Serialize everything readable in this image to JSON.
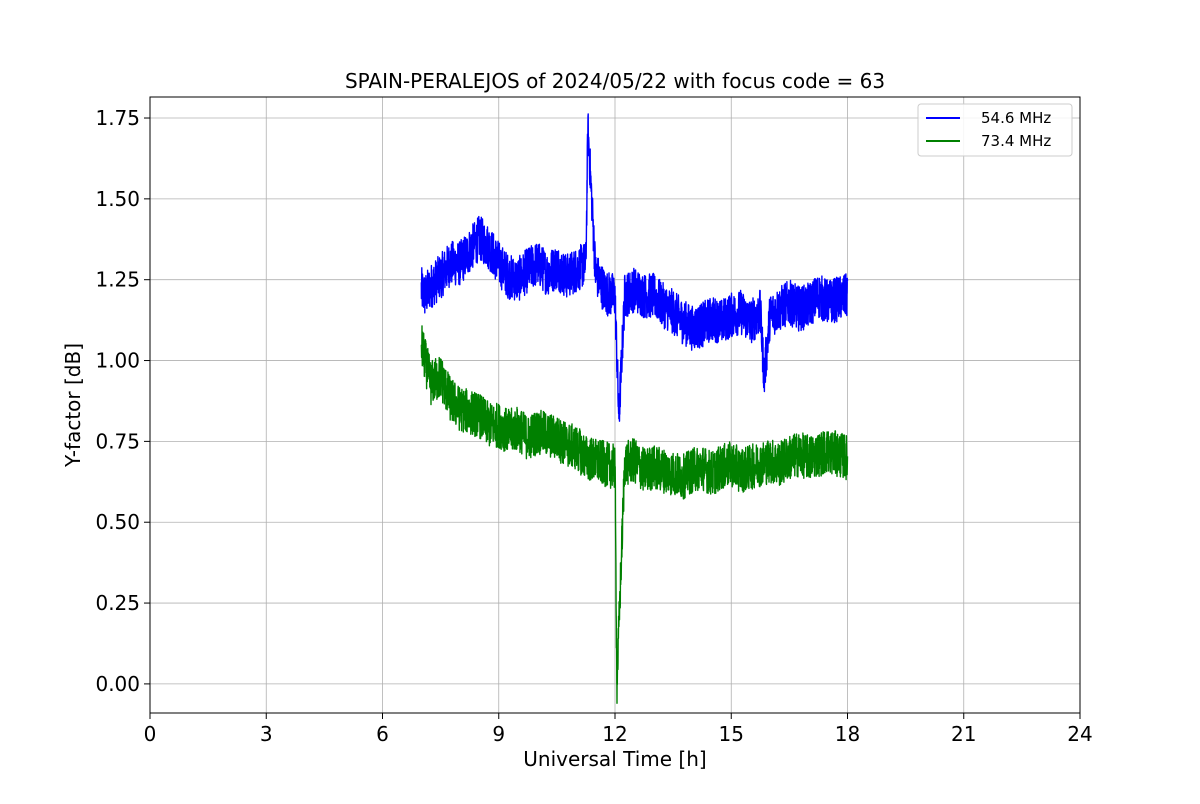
{
  "chart_data": {
    "type": "line",
    "title": "SPAIN-PERALEJOS of 2024/05/22 with focus code = 63",
    "xlabel": "Universal Time [h]",
    "ylabel": "Y-factor [dB]",
    "xlim": [
      0,
      24
    ],
    "ylim": [
      -0.09,
      1.815
    ],
    "xticks": [
      0,
      3,
      6,
      9,
      12,
      15,
      18,
      21,
      24
    ],
    "xtick_labels": [
      "0",
      "3",
      "6",
      "9",
      "12",
      "15",
      "18",
      "21",
      "24"
    ],
    "yticks": [
      0.0,
      0.25,
      0.5,
      0.75,
      1.0,
      1.25,
      1.5,
      1.75
    ],
    "ytick_labels": [
      "0.00",
      "0.25",
      "0.50",
      "0.75",
      "1.00",
      "1.25",
      "1.50",
      "1.75"
    ],
    "grid": true,
    "legend_position": "top-right",
    "series": [
      {
        "name": "54.6 MHz",
        "color": "#0000ff",
        "x": [
          7.0,
          7.1,
          7.25,
          7.5,
          7.75,
          8.0,
          8.25,
          8.5,
          8.75,
          9.0,
          9.25,
          9.5,
          9.75,
          10.0,
          10.25,
          10.5,
          10.75,
          11.0,
          11.25,
          11.3,
          11.5,
          11.75,
          12.0,
          12.1,
          12.25,
          12.5,
          12.75,
          13.0,
          13.25,
          13.5,
          13.75,
          14.0,
          14.25,
          14.5,
          14.75,
          15.0,
          15.25,
          15.5,
          15.75,
          15.85,
          16.0,
          16.25,
          16.5,
          16.75,
          17.0,
          17.25,
          17.5,
          17.75,
          18.0
        ],
        "values": [
          1.22,
          1.2,
          1.23,
          1.26,
          1.3,
          1.3,
          1.34,
          1.38,
          1.35,
          1.3,
          1.26,
          1.25,
          1.28,
          1.3,
          1.27,
          1.29,
          1.26,
          1.28,
          1.3,
          1.72,
          1.27,
          1.21,
          1.2,
          0.82,
          1.2,
          1.22,
          1.2,
          1.2,
          1.17,
          1.15,
          1.12,
          1.1,
          1.11,
          1.13,
          1.12,
          1.14,
          1.15,
          1.12,
          1.15,
          0.95,
          1.14,
          1.16,
          1.18,
          1.16,
          1.17,
          1.2,
          1.18,
          1.19,
          1.2
        ],
        "spread": 0.07
      },
      {
        "name": "73.4 MHz",
        "color": "#008000",
        "x": [
          7.0,
          7.1,
          7.25,
          7.5,
          7.75,
          8.0,
          8.25,
          8.5,
          8.75,
          9.0,
          9.25,
          9.5,
          9.75,
          10.0,
          10.25,
          10.5,
          10.75,
          11.0,
          11.25,
          11.5,
          11.75,
          12.0,
          12.05,
          12.25,
          12.5,
          12.75,
          13.0,
          13.25,
          13.5,
          13.75,
          14.0,
          14.25,
          14.5,
          14.75,
          15.0,
          15.25,
          15.5,
          15.75,
          16.0,
          16.25,
          16.5,
          16.75,
          17.0,
          17.25,
          17.5,
          17.75,
          18.0
        ],
        "values": [
          1.05,
          1.0,
          0.93,
          0.95,
          0.88,
          0.85,
          0.84,
          0.83,
          0.8,
          0.8,
          0.78,
          0.79,
          0.76,
          0.78,
          0.77,
          0.76,
          0.74,
          0.73,
          0.7,
          0.69,
          0.68,
          0.67,
          0.0,
          0.68,
          0.69,
          0.66,
          0.67,
          0.66,
          0.65,
          0.64,
          0.66,
          0.67,
          0.65,
          0.67,
          0.68,
          0.66,
          0.67,
          0.68,
          0.69,
          0.68,
          0.7,
          0.71,
          0.7,
          0.71,
          0.72,
          0.71,
          0.7
        ],
        "spread": 0.07
      }
    ]
  }
}
